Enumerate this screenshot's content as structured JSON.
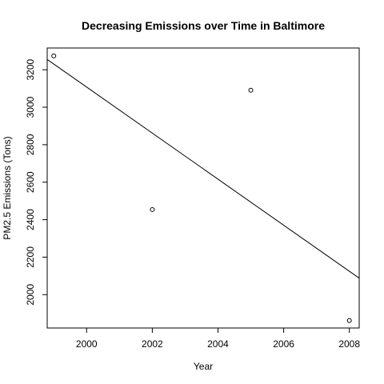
{
  "chart_data": {
    "type": "scatter",
    "title": "Decreasing Emissions over Time in Baltimore",
    "xlabel": "Year",
    "ylabel": "PM2.5 Emissions (Tons)",
    "xlim": [
      1998.8,
      2008.3
    ],
    "ylim": [
      1822,
      3316
    ],
    "x_ticks": [
      2000,
      2002,
      2004,
      2006,
      2008
    ],
    "y_ticks": [
      2000,
      2200,
      2400,
      2600,
      2800,
      3000,
      3200
    ],
    "grid": false,
    "points": [
      {
        "x": 1999,
        "y": 3274
      },
      {
        "x": 2002,
        "y": 2454
      },
      {
        "x": 2005,
        "y": 3091
      },
      {
        "x": 2008,
        "y": 1862
      }
    ],
    "trend_line": {
      "x": [
        1998.8,
        2008.3
      ],
      "y": [
        3255,
        2088
      ]
    },
    "colors": {
      "points": "#000000",
      "line": "#000000",
      "axis": "#000000",
      "background": "#ffffff"
    }
  }
}
